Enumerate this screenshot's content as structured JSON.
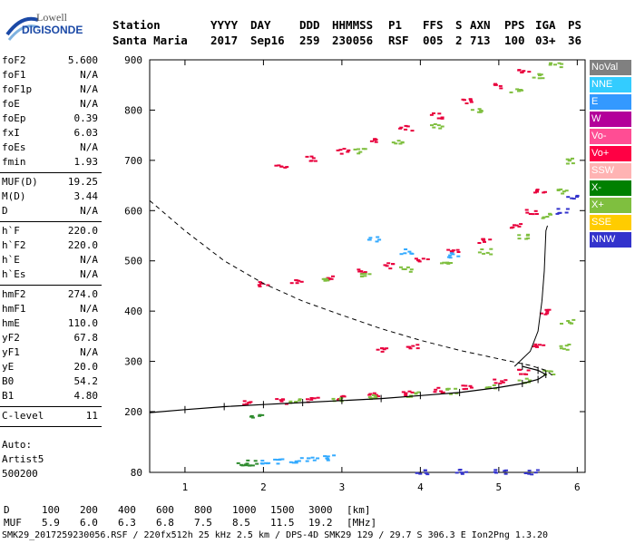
{
  "logo": {
    "top": "Lowell",
    "bottom": "DIGISONDE"
  },
  "header": {
    "row1": [
      "Station",
      "YYYY",
      "DAY",
      "DDD",
      "HHMMSS",
      "P1",
      "FFS",
      "S",
      "AXN",
      "PPS",
      "IGA",
      "PS"
    ],
    "row2": [
      "Santa Maria",
      "2017",
      "Sep16",
      "259",
      "230056",
      "RSF",
      "005",
      "2",
      "713",
      "100",
      "03+",
      "36"
    ]
  },
  "params_group1": [
    {
      "k": "foF2",
      "v": "5.600"
    },
    {
      "k": "foF1",
      "v": "N/A"
    },
    {
      "k": "foF1p",
      "v": "N/A"
    },
    {
      "k": "foE",
      "v": "N/A"
    },
    {
      "k": "foEp",
      "v": "0.39"
    },
    {
      "k": "fxI",
      "v": "6.03"
    },
    {
      "k": "foEs",
      "v": "N/A"
    },
    {
      "k": "fmin",
      "v": "1.93"
    }
  ],
  "params_group2": [
    {
      "k": "MUF(D)",
      "v": "19.25"
    },
    {
      "k": "M(D)",
      "v": "3.44"
    },
    {
      "k": "D",
      "v": "N/A"
    }
  ],
  "params_group3": [
    {
      "k": "h`F",
      "v": "220.0"
    },
    {
      "k": "h`F2",
      "v": "220.0"
    },
    {
      "k": "h`E",
      "v": "N/A"
    },
    {
      "k": "h`Es",
      "v": "N/A"
    }
  ],
  "params_group4": [
    {
      "k": "hmF2",
      "v": "274.0"
    },
    {
      "k": "hmF1",
      "v": "N/A"
    },
    {
      "k": "hmE",
      "v": "110.0"
    },
    {
      "k": "yF2",
      "v": "67.8"
    },
    {
      "k": "yF1",
      "v": "N/A"
    },
    {
      "k": "yE",
      "v": "20.0"
    },
    {
      "k": "B0",
      "v": "54.2"
    },
    {
      "k": "B1",
      "v": "4.80"
    }
  ],
  "params_group5": [
    {
      "k": "C-level",
      "v": "11"
    }
  ],
  "auto": {
    "line1": "Auto:",
    "line2": "Artist5",
    "line3": "500200"
  },
  "legend": [
    {
      "label": "NoVal",
      "color": "#808080"
    },
    {
      "label": "NNE",
      "color": "#33ccff"
    },
    {
      "label": "E",
      "color": "#3399ff"
    },
    {
      "label": "W",
      "color": "#b3009a"
    },
    {
      "label": "Vo-",
      "color": "#ff4d94"
    },
    {
      "label": "Vo+",
      "color": "#ff0044"
    },
    {
      "label": "SSW",
      "color": "#ffb3b3"
    },
    {
      "label": "X-",
      "color": "#008000"
    },
    {
      "label": "X+",
      "color": "#7fbf3f"
    },
    {
      "label": "SSE",
      "color": "#ffcc00"
    },
    {
      "label": "NNW",
      "color": "#3333cc"
    }
  ],
  "chart_data": {
    "type": "scatter",
    "title": "",
    "xlabel": "",
    "ylabel": "",
    "x_ticks": [
      "1",
      "2",
      "3",
      "4",
      "5",
      "6"
    ],
    "y_ticks": [
      "80",
      "200",
      "300",
      "400",
      "500",
      "600",
      "700",
      "800",
      "900"
    ],
    "xlim": [
      0.55,
      6.1
    ],
    "ylim": [
      80,
      900
    ],
    "series": [
      {
        "name": "Vo+",
        "color": "#e8003c",
        "points": [
          [
            1.8,
            220
          ],
          [
            2.2,
            222
          ],
          [
            2.6,
            226
          ],
          [
            3.0,
            230
          ],
          [
            3.4,
            234
          ],
          [
            3.8,
            238
          ],
          [
            4.2,
            244
          ],
          [
            4.6,
            252
          ],
          [
            5.0,
            262
          ],
          [
            5.3,
            280
          ],
          [
            5.5,
            330
          ],
          [
            5.6,
            400
          ],
          [
            2.0,
            455
          ],
          [
            2.4,
            462
          ],
          [
            2.8,
            470
          ],
          [
            3.2,
            480
          ],
          [
            3.6,
            492
          ],
          [
            4.0,
            505
          ],
          [
            4.4,
            520
          ],
          [
            4.8,
            540
          ],
          [
            5.2,
            570
          ],
          [
            5.4,
            600
          ],
          [
            5.5,
            640
          ],
          [
            2.2,
            690
          ],
          [
            2.6,
            705
          ],
          [
            3.0,
            720
          ],
          [
            3.4,
            740
          ],
          [
            3.8,
            765
          ],
          [
            4.2,
            790
          ],
          [
            4.6,
            820
          ],
          [
            5.0,
            850
          ],
          [
            5.3,
            880
          ],
          [
            3.5,
            325
          ],
          [
            3.9,
            330
          ]
        ]
      },
      {
        "name": "X+",
        "color": "#7fbf3f",
        "points": [
          [
            2.4,
            222
          ],
          [
            2.9,
            226
          ],
          [
            3.4,
            230
          ],
          [
            3.9,
            236
          ],
          [
            4.4,
            242
          ],
          [
            4.9,
            250
          ],
          [
            5.3,
            262
          ],
          [
            5.6,
            280
          ],
          [
            5.8,
            330
          ],
          [
            5.85,
            380
          ],
          [
            2.8,
            462
          ],
          [
            3.3,
            472
          ],
          [
            3.8,
            485
          ],
          [
            4.3,
            500
          ],
          [
            4.8,
            520
          ],
          [
            5.3,
            550
          ],
          [
            5.6,
            590
          ],
          [
            5.8,
            640
          ],
          [
            5.9,
            700
          ],
          [
            3.2,
            720
          ],
          [
            3.7,
            740
          ],
          [
            4.2,
            770
          ],
          [
            4.7,
            800
          ],
          [
            5.2,
            840
          ],
          [
            5.5,
            870
          ],
          [
            5.7,
            890
          ]
        ]
      },
      {
        "name": "NNE",
        "color": "#33aaff",
        "points": [
          [
            2.0,
            100
          ],
          [
            2.2,
            104
          ],
          [
            2.4,
            106
          ],
          [
            2.6,
            108
          ],
          [
            2.8,
            110
          ],
          [
            3.4,
            545
          ],
          [
            3.8,
            520
          ],
          [
            4.4,
            512
          ]
        ]
      },
      {
        "name": "X-",
        "color": "#2e8b2e",
        "points": [
          [
            1.7,
            100
          ],
          [
            1.85,
            100
          ],
          [
            1.9,
            190
          ]
        ]
      },
      {
        "name": "NNW",
        "color": "#3333cc",
        "points": [
          [
            5.9,
            630
          ],
          [
            5.8,
            600
          ],
          [
            4.0,
            83
          ],
          [
            4.5,
            82
          ],
          [
            5.0,
            82
          ],
          [
            5.4,
            82
          ]
        ]
      }
    ],
    "dashed_curve": [
      [
        0.55,
        620
      ],
      [
        1.0,
        560
      ],
      [
        1.5,
        500
      ],
      [
        2.0,
        455
      ],
      [
        2.5,
        420
      ],
      [
        3.0,
        392
      ],
      [
        3.5,
        365
      ],
      [
        4.0,
        342
      ],
      [
        4.5,
        322
      ],
      [
        5.0,
        305
      ],
      [
        5.4,
        292
      ],
      [
        5.6,
        282
      ],
      [
        5.7,
        270
      ]
    ],
    "profile_curve": [
      [
        0.55,
        198
      ],
      [
        1.0,
        204
      ],
      [
        1.5,
        210
      ],
      [
        2.0,
        214
      ],
      [
        2.5,
        218
      ],
      [
        3.0,
        222
      ],
      [
        3.5,
        226
      ],
      [
        4.0,
        232
      ],
      [
        4.5,
        238
      ],
      [
        5.0,
        248
      ],
      [
        5.3,
        256
      ],
      [
        5.5,
        264
      ],
      [
        5.6,
        274
      ],
      [
        5.5,
        282
      ],
      [
        5.3,
        290
      ]
    ],
    "ordinary_trace": [
      [
        5.2,
        290
      ],
      [
        5.4,
        320
      ],
      [
        5.5,
        360
      ],
      [
        5.55,
        420
      ],
      [
        5.58,
        480
      ],
      [
        5.6,
        560
      ],
      [
        5.62,
        570
      ]
    ]
  },
  "bottom": {
    "row1": [
      "D",
      "100",
      "200",
      "400",
      "600",
      "800",
      "1000",
      "1500",
      "3000",
      "[km]"
    ],
    "row2": [
      "MUF",
      "5.9",
      "6.0",
      "6.3",
      "6.8",
      "7.5",
      "8.5",
      "11.5",
      "19.2",
      "[MHz]"
    ]
  },
  "footer": "SMK29_2017259230056.RSF / 220fx512h 25 kHz 2.5 km / DPS-4D SMK29 129 / 29.7 S 306.3 E Ion2Png 1.3.20"
}
